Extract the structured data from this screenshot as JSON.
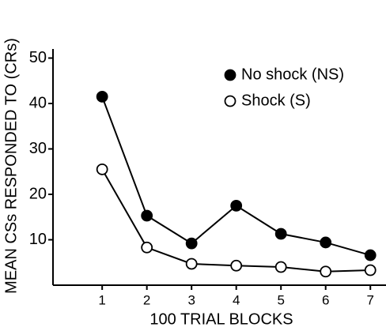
{
  "chart_data": {
    "type": "line",
    "x_label": "100 TRIAL BLOCKS",
    "y_label": "MEAN CSs RESPONDED TO (CRs)",
    "x": [
      1,
      2,
      3,
      4,
      5,
      6,
      7
    ],
    "series": [
      {
        "name": "No shock (NS)",
        "color": "#000",
        "fill": "#000",
        "values": [
          41.5,
          15.3,
          9.2,
          17.5,
          11.3,
          9.4,
          6.6
        ]
      },
      {
        "name": "Shock (S)",
        "color": "#000",
        "fill": "#fff",
        "values": [
          25.5,
          8.3,
          4.7,
          4.3,
          4,
          3,
          3.3
        ]
      }
    ],
    "xlim": [
      -0.1,
      7.35
    ],
    "xticks": [
      1,
      2,
      3,
      4,
      5,
      6,
      7
    ],
    "ylim": [
      0,
      52
    ],
    "yticks": [
      10,
      20,
      30,
      40,
      50
    ],
    "grid": false,
    "legend": "upper right"
  }
}
